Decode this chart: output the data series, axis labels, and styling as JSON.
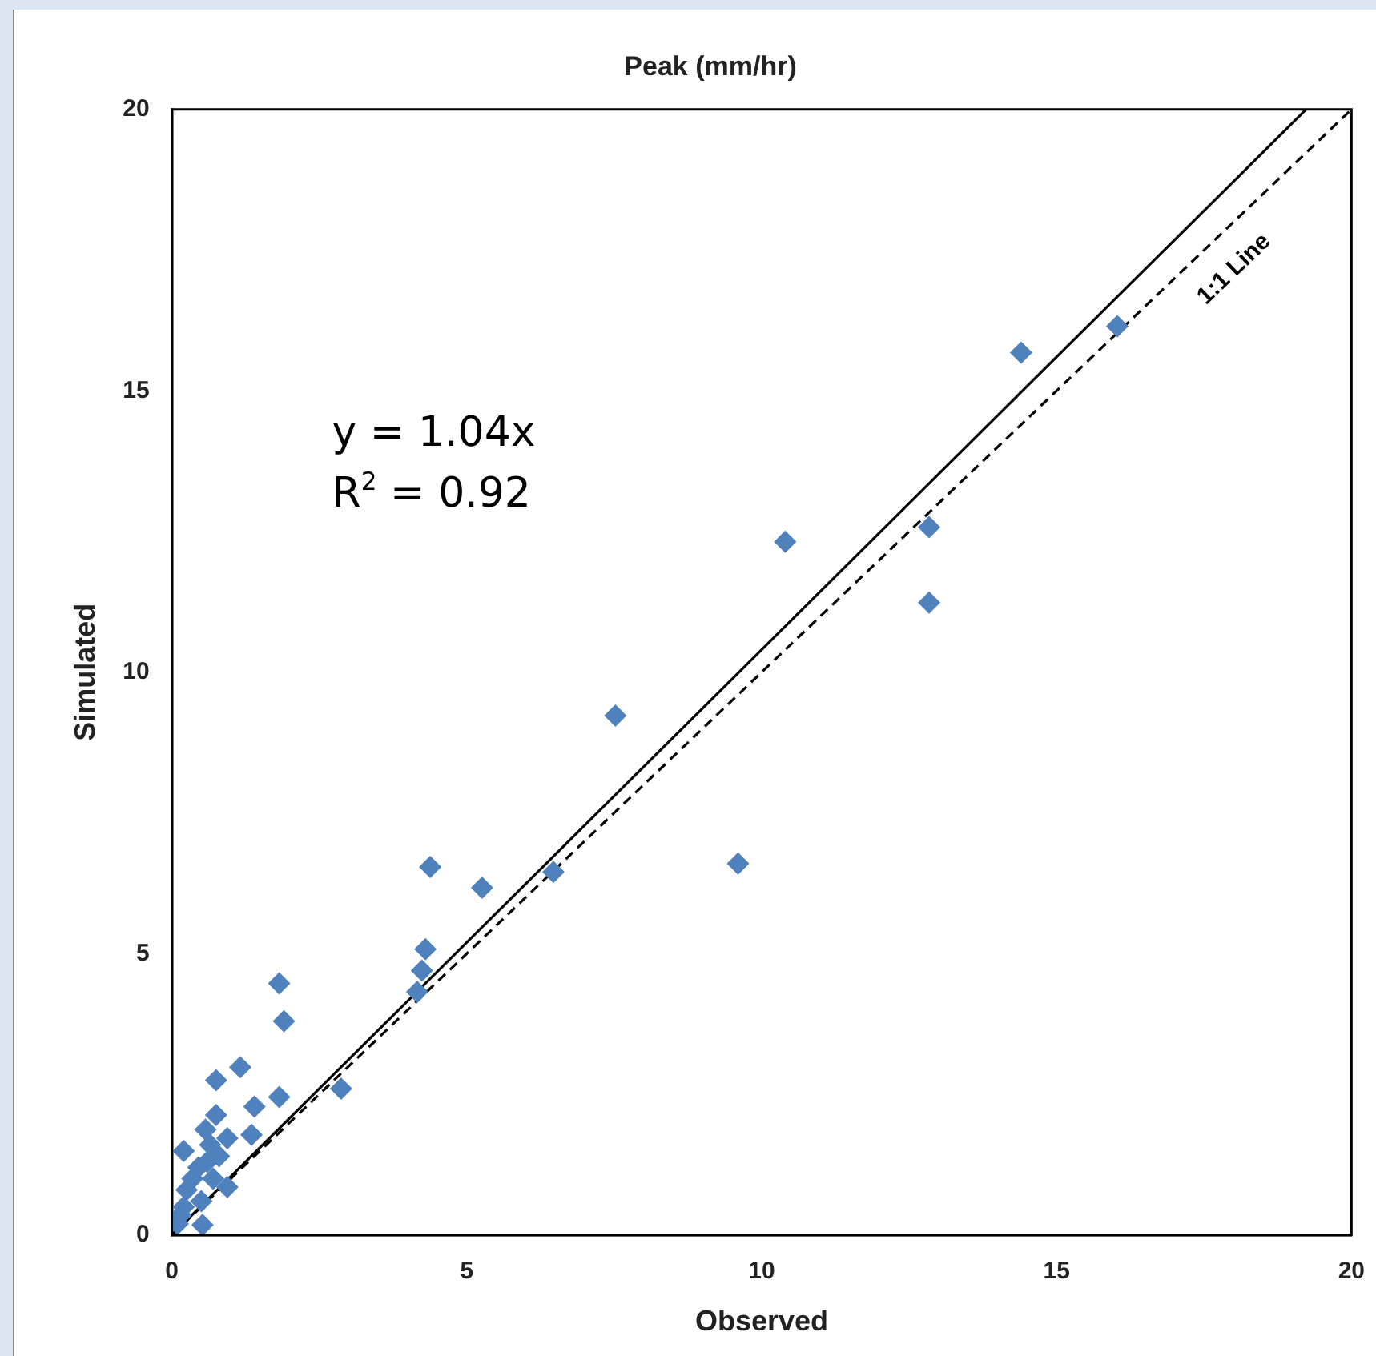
{
  "chart_data": {
    "type": "scatter",
    "title": "Peak (mm/hr)",
    "xlabel": "Observed",
    "ylabel": "Simulated",
    "xlim": [
      0,
      20
    ],
    "ylim": [
      0,
      20
    ],
    "xticks": [
      0,
      5,
      10,
      15,
      20
    ],
    "yticks": [
      0,
      5,
      10,
      15,
      20
    ],
    "grid": false,
    "legend": false,
    "annotations": [
      "y = 1.04x",
      "R$^{2}$ = 0.92"
    ],
    "series": [
      {
        "marker": "diamond",
        "color": "#4f81bd",
        "x": [
          14.4,
          16.03,
          10.4,
          12.84,
          12.84,
          7.52,
          9.6,
          6.47,
          5.26,
          4.38,
          4.3,
          4.24,
          4.16,
          1.82,
          1.9,
          2.87,
          1.16,
          0.75,
          1.82,
          1.4,
          1.35,
          0.75,
          0.57,
          0.2,
          0.94,
          0.94,
          0.52,
          0.1,
          0.15,
          0.2,
          0.3,
          0.4,
          0.5,
          0.6,
          0.7,
          0.8,
          0.35,
          0.25,
          0.5,
          0.65,
          0.45
        ],
        "values": [
          15.68,
          16.15,
          12.32,
          12.58,
          11.24,
          9.23,
          6.6,
          6.45,
          6.17,
          6.54,
          5.08,
          4.7,
          4.32,
          4.47,
          3.8,
          2.6,
          2.98,
          2.75,
          2.45,
          2.28,
          1.78,
          2.13,
          1.87,
          1.49,
          1.72,
          0.85,
          0.18,
          0.2,
          0.35,
          0.5,
          null,
          null,
          null,
          1.3,
          1.0,
          1.4,
          1.0,
          0.8,
          0.6,
          1.6,
          1.2
        ]
      },
      {
        "type": "line",
        "marker": "none",
        "line_style": "solid",
        "color": "#000000",
        "x": [
          0,
          19.23
        ],
        "values": [
          0,
          20
        ]
      },
      {
        "type": "line",
        "name": "1:1 Line",
        "marker": "none",
        "line_style": "dashed",
        "color": "#000000",
        "x": [
          0,
          20
        ],
        "values": [
          0,
          20
        ]
      }
    ]
  }
}
